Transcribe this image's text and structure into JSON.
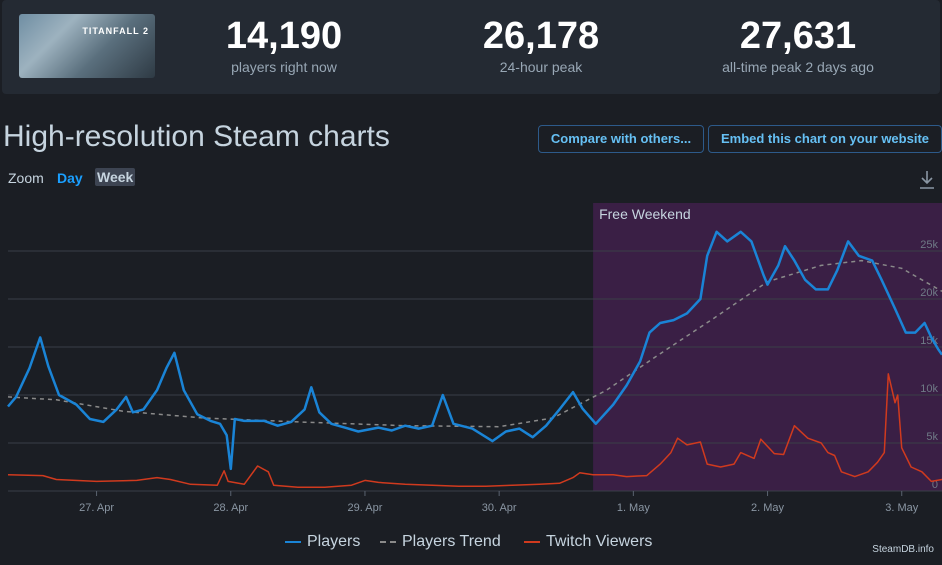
{
  "header": {
    "game_logo_text": "TITANFALL 2",
    "stats": [
      {
        "value": "14,190",
        "label": "players right now"
      },
      {
        "value": "26,178",
        "label": "24-hour peak"
      },
      {
        "value": "27,631",
        "label": "all-time peak 2 days ago"
      }
    ]
  },
  "page": {
    "title": "High-resolution Steam charts",
    "compare_button": "Compare with others...",
    "embed_button": "Embed this chart on your website",
    "zoom_label": "Zoom",
    "zoom_day": "Day",
    "zoom_week": "Week",
    "credit": "SteamDB.info"
  },
  "colors": {
    "players": "#1a84d6",
    "trend": "#8a8a8a",
    "twitch": "#d03a1e",
    "band": "#3a1f45"
  },
  "chart_data": {
    "type": "line",
    "x_unit": "days from 27. Apr 00:00",
    "x_ticks": [
      {
        "x": 0,
        "label": "27. Apr"
      },
      {
        "x": 1,
        "label": "28. Apr"
      },
      {
        "x": 2,
        "label": "29. Apr"
      },
      {
        "x": 3,
        "label": "30. Apr"
      },
      {
        "x": 4,
        "label": "1. May"
      },
      {
        "x": 5,
        "label": "2. May"
      },
      {
        "x": 6,
        "label": "3. May"
      }
    ],
    "xlim": [
      -0.66,
      6.3
    ],
    "ylim": [
      0,
      30000
    ],
    "y_ticks": [
      {
        "y": 0,
        "label": "0"
      },
      {
        "y": 5000,
        "label": "5k"
      },
      {
        "y": 10000,
        "label": "10k"
      },
      {
        "y": 15000,
        "label": "15k"
      },
      {
        "y": 20000,
        "label": "20k"
      },
      {
        "y": 25000,
        "label": "25k"
      }
    ],
    "band": {
      "from": 3.7,
      "to": 6.3,
      "label": "Free Weekend"
    },
    "legend": [
      "Players",
      "Players Trend",
      "Twitch Viewers"
    ],
    "series": [
      {
        "name": "Players",
        "points": [
          [
            -0.66,
            8800
          ],
          [
            -0.6,
            9800
          ],
          [
            -0.5,
            12800
          ],
          [
            -0.42,
            16000
          ],
          [
            -0.36,
            13000
          ],
          [
            -0.28,
            10000
          ],
          [
            -0.15,
            9000
          ],
          [
            -0.05,
            7500
          ],
          [
            0.05,
            7200
          ],
          [
            0.15,
            8500
          ],
          [
            0.22,
            9800
          ],
          [
            0.27,
            8200
          ],
          [
            0.35,
            8500
          ],
          [
            0.45,
            10500
          ],
          [
            0.52,
            12800
          ],
          [
            0.58,
            14400
          ],
          [
            0.65,
            10500
          ],
          [
            0.75,
            8000
          ],
          [
            0.85,
            7300
          ],
          [
            0.92,
            7000
          ],
          [
            0.97,
            5800
          ],
          [
            1.0,
            2300
          ],
          [
            1.03,
            7500
          ],
          [
            1.1,
            7300
          ],
          [
            1.25,
            7300
          ],
          [
            1.35,
            6800
          ],
          [
            1.45,
            7200
          ],
          [
            1.55,
            8500
          ],
          [
            1.6,
            10800
          ],
          [
            1.66,
            8200
          ],
          [
            1.75,
            7000
          ],
          [
            1.85,
            6600
          ],
          [
            1.95,
            6200
          ],
          [
            2.1,
            6600
          ],
          [
            2.2,
            6300
          ],
          [
            2.3,
            6800
          ],
          [
            2.4,
            6500
          ],
          [
            2.5,
            6800
          ],
          [
            2.58,
            10000
          ],
          [
            2.66,
            7000
          ],
          [
            2.8,
            6500
          ],
          [
            2.95,
            5200
          ],
          [
            3.05,
            6200
          ],
          [
            3.15,
            6500
          ],
          [
            3.25,
            5600
          ],
          [
            3.35,
            6800
          ],
          [
            3.45,
            8500
          ],
          [
            3.55,
            10300
          ],
          [
            3.62,
            8600
          ],
          [
            3.72,
            7000
          ],
          [
            3.85,
            9000
          ],
          [
            3.95,
            11000
          ],
          [
            4.05,
            13500
          ],
          [
            4.12,
            16500
          ],
          [
            4.2,
            17500
          ],
          [
            4.3,
            17800
          ],
          [
            4.4,
            18500
          ],
          [
            4.5,
            20000
          ],
          [
            4.55,
            24500
          ],
          [
            4.62,
            27000
          ],
          [
            4.7,
            26000
          ],
          [
            4.8,
            27000
          ],
          [
            4.88,
            26000
          ],
          [
            4.97,
            22500
          ],
          [
            5.0,
            21500
          ],
          [
            5.08,
            23500
          ],
          [
            5.13,
            25500
          ],
          [
            5.2,
            24000
          ],
          [
            5.28,
            22000
          ],
          [
            5.36,
            21000
          ],
          [
            5.45,
            21000
          ],
          [
            5.52,
            23000
          ],
          [
            5.6,
            26000
          ],
          [
            5.68,
            24500
          ],
          [
            5.78,
            24000
          ],
          [
            5.85,
            22000
          ],
          [
            5.95,
            19000
          ],
          [
            6.03,
            16500
          ],
          [
            6.1,
            16500
          ],
          [
            6.17,
            17500
          ],
          [
            6.22,
            16000
          ],
          [
            6.27,
            14800
          ],
          [
            6.3,
            14200
          ]
        ]
      },
      {
        "name": "Players Trend",
        "points": [
          [
            -0.66,
            9800
          ],
          [
            -0.3,
            9500
          ],
          [
            0.2,
            8300
          ],
          [
            0.8,
            7600
          ],
          [
            1.5,
            7200
          ],
          [
            2.3,
            6800
          ],
          [
            3.0,
            6700
          ],
          [
            3.4,
            7600
          ],
          [
            3.8,
            10500
          ],
          [
            4.2,
            14300
          ],
          [
            4.6,
            18000
          ],
          [
            5.0,
            21800
          ],
          [
            5.4,
            23500
          ],
          [
            5.7,
            24000
          ],
          [
            6.0,
            23200
          ],
          [
            6.3,
            20800
          ]
        ]
      },
      {
        "name": "Twitch Viewers",
        "points": [
          [
            -0.66,
            1700
          ],
          [
            -0.4,
            1600
          ],
          [
            -0.3,
            1200
          ],
          [
            0,
            1000
          ],
          [
            0.3,
            1100
          ],
          [
            0.45,
            1400
          ],
          [
            0.55,
            1200
          ],
          [
            0.7,
            700
          ],
          [
            0.9,
            600
          ],
          [
            0.95,
            2100
          ],
          [
            0.98,
            1000
          ],
          [
            1.1,
            700
          ],
          [
            1.2,
            2600
          ],
          [
            1.28,
            2000
          ],
          [
            1.32,
            600
          ],
          [
            1.5,
            400
          ],
          [
            1.7,
            400
          ],
          [
            1.9,
            600
          ],
          [
            2.0,
            1100
          ],
          [
            2.1,
            900
          ],
          [
            2.3,
            700
          ],
          [
            2.5,
            600
          ],
          [
            2.7,
            500
          ],
          [
            2.9,
            500
          ],
          [
            3.1,
            600
          ],
          [
            3.3,
            700
          ],
          [
            3.45,
            800
          ],
          [
            3.55,
            1400
          ],
          [
            3.6,
            1900
          ],
          [
            3.7,
            1700
          ],
          [
            3.85,
            1700
          ],
          [
            3.95,
            1500
          ],
          [
            4.1,
            1600
          ],
          [
            4.2,
            2800
          ],
          [
            4.28,
            4000
          ],
          [
            4.33,
            5500
          ],
          [
            4.4,
            4800
          ],
          [
            4.5,
            5100
          ],
          [
            4.55,
            2800
          ],
          [
            4.65,
            2500
          ],
          [
            4.75,
            2800
          ],
          [
            4.8,
            4000
          ],
          [
            4.9,
            3400
          ],
          [
            4.95,
            5400
          ],
          [
            5.05,
            3900
          ],
          [
            5.12,
            3800
          ],
          [
            5.2,
            6800
          ],
          [
            5.3,
            5500
          ],
          [
            5.4,
            5000
          ],
          [
            5.45,
            4000
          ],
          [
            5.5,
            3700
          ],
          [
            5.55,
            2000
          ],
          [
            5.65,
            1500
          ],
          [
            5.75,
            2000
          ],
          [
            5.82,
            3000
          ],
          [
            5.87,
            4000
          ],
          [
            5.9,
            12200
          ],
          [
            5.95,
            9200
          ],
          [
            5.97,
            10000
          ],
          [
            6.0,
            4500
          ],
          [
            6.07,
            2500
          ],
          [
            6.15,
            2000
          ],
          [
            6.22,
            1000
          ],
          [
            6.3,
            1200
          ]
        ]
      }
    ]
  }
}
